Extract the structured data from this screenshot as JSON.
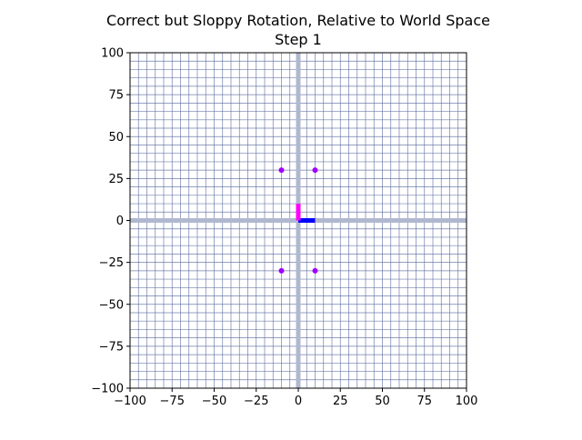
{
  "chart_data": {
    "type": "scatter",
    "title": "Correct but Sloppy Rotation, Relative to World Space",
    "subtitle": "Step 1",
    "xlabel": "",
    "ylabel": "",
    "xlim": [
      -100,
      100
    ],
    "ylim": [
      -100,
      100
    ],
    "x_ticks": [
      -100,
      -75,
      -50,
      -25,
      0,
      25,
      50,
      75,
      100
    ],
    "y_ticks": [
      -100,
      -75,
      -50,
      -25,
      0,
      25,
      50,
      75,
      100
    ],
    "x_tick_labels": [
      "−100",
      "−75",
      "−50",
      "−25",
      "0",
      "25",
      "50",
      "75",
      "100"
    ],
    "y_tick_labels": [
      "−100",
      "−75",
      "−50",
      "−25",
      "0",
      "25",
      "50",
      "75",
      "100"
    ],
    "minor_grid_step": 5,
    "grid": true,
    "axis_lines": [
      {
        "orientation": "vertical",
        "value": 0
      },
      {
        "orientation": "horizontal",
        "value": 0
      }
    ],
    "points": [
      {
        "x": -10,
        "y": 30
      },
      {
        "x": 10,
        "y": 30
      },
      {
        "x": -10,
        "y": -30
      },
      {
        "x": 10,
        "y": -30
      }
    ],
    "basis_vectors": [
      {
        "name": "",
        "dx": 10,
        "dy": 0,
        "color": "#0000ff"
      },
      {
        "name": "",
        "dx": 0,
        "dy": 10,
        "color": "#ff00ff"
      }
    ],
    "colors": {
      "point": "#a000ff",
      "grid": "#5a6aa0",
      "axis_line": "#b0b8d0"
    }
  }
}
